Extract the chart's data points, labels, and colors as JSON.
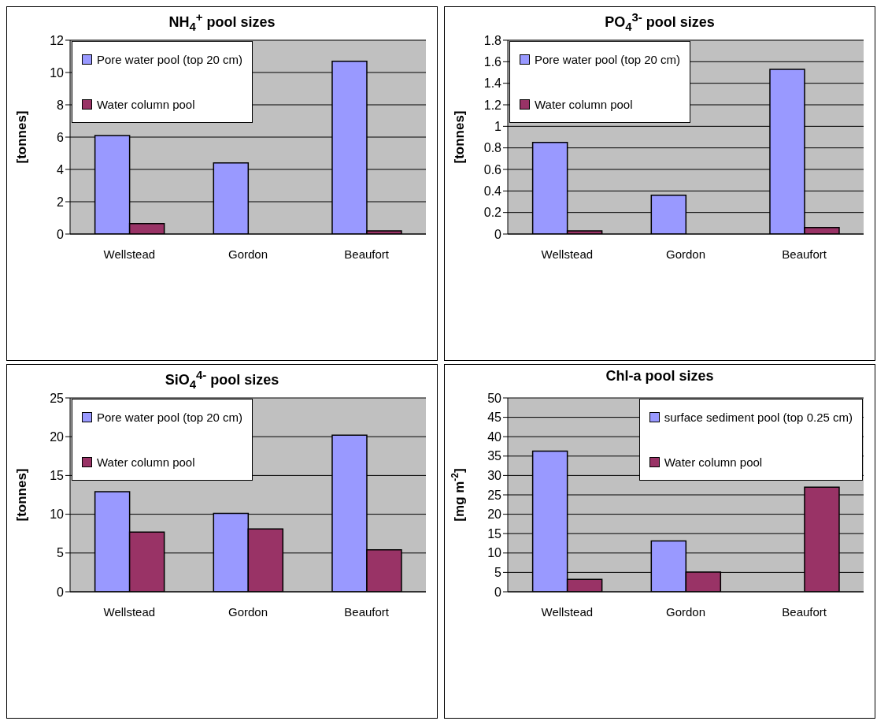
{
  "chart_data": [
    {
      "type": "bar",
      "title": "NH$_{4}$$^{+}$ pool sizes",
      "ylabel": "[tonnes]",
      "categories": [
        "Wellstead",
        "Gordon",
        "Beaufort"
      ],
      "series": [
        {
          "name": "Pore water pool (top 20 cm)",
          "color": "#9999ff",
          "values": [
            6.1,
            4.4,
            10.7
          ]
        },
        {
          "name": "Water column pool",
          "color": "#993366",
          "values": [
            0.65,
            null,
            0.2
          ]
        }
      ],
      "ylim": [
        0,
        12
      ],
      "yticks": [
        0,
        2,
        4,
        6,
        8,
        10,
        12
      ],
      "grid": "y",
      "legend": "top left"
    },
    {
      "type": "bar",
      "title": "PO$_{4}$$^{3-}$ pool sizes",
      "ylabel": "[tonnes]",
      "categories": [
        "Wellstead",
        "Gordon",
        "Beaufort"
      ],
      "series": [
        {
          "name": "Pore water pool (top 20 cm)",
          "color": "#9999ff",
          "values": [
            0.85,
            0.36,
            1.53
          ]
        },
        {
          "name": "Water column pool",
          "color": "#993366",
          "values": [
            0.03,
            null,
            0.06
          ]
        }
      ],
      "ylim": [
        0,
        1.8
      ],
      "yticks": [
        0,
        0.2,
        0.4,
        0.6,
        0.8,
        1,
        1.2,
        1.4,
        1.6,
        1.8
      ],
      "grid": "y",
      "legend": "top left"
    },
    {
      "type": "bar",
      "title": "SiO$_{4}$$^{4-}$ pool sizes",
      "ylabel": "[tonnes]",
      "categories": [
        "Wellstead",
        "Gordon",
        "Beaufort"
      ],
      "series": [
        {
          "name": "Pore water pool (top 20 cm)",
          "color": "#9999ff",
          "values": [
            12.9,
            10.1,
            20.2
          ]
        },
        {
          "name": "Water column pool",
          "color": "#993366",
          "values": [
            7.7,
            8.1,
            5.4
          ]
        }
      ],
      "ylim": [
        0,
        25
      ],
      "yticks": [
        0,
        5,
        10,
        15,
        20,
        25
      ],
      "grid": "y",
      "legend": "top left"
    },
    {
      "type": "bar",
      "title": "Chl-a pool sizes",
      "ylabel": "[mg m$^{-2}$]",
      "categories": [
        "Wellstead",
        "Gordon",
        "Beaufort"
      ],
      "series": [
        {
          "name": "surface sediment pool (top 0.25 cm)",
          "color": "#9999ff",
          "values": [
            36.3,
            13.1,
            null
          ]
        },
        {
          "name": "Water column pool",
          "color": "#993366",
          "values": [
            3.2,
            5.1,
            27.0
          ]
        }
      ],
      "ylim": [
        0,
        50
      ],
      "yticks": [
        0,
        5,
        10,
        15,
        20,
        25,
        30,
        35,
        40,
        45,
        50
      ],
      "grid": "y",
      "legend": "top right"
    }
  ]
}
